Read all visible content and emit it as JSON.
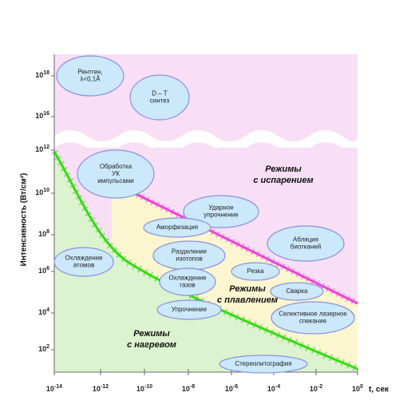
{
  "y_axis": {
    "label": "Интенсивность (Вт/см²)",
    "ticks": [
      {
        "base": "10",
        "exponent": "18"
      },
      {
        "base": "10",
        "exponent": "16"
      },
      {
        "base": "10",
        "exponent": "12"
      },
      {
        "base": "10",
        "exponent": "10"
      },
      {
        "base": "10",
        "exponent": "8"
      },
      {
        "base": "10",
        "exponent": "6"
      },
      {
        "base": "10",
        "exponent": "4"
      },
      {
        "base": "10",
        "exponent": "2"
      }
    ]
  },
  "x_axis": {
    "label": "t, сек",
    "ticks": [
      {
        "base": "10",
        "exponent": "-14"
      },
      {
        "base": "10",
        "exponent": "-12"
      },
      {
        "base": "10",
        "exponent": "-10"
      },
      {
        "base": "10",
        "exponent": "-8"
      },
      {
        "base": "10",
        "exponent": "-6"
      },
      {
        "base": "10",
        "exponent": "-4"
      },
      {
        "base": "10",
        "exponent": "-2"
      },
      {
        "base": "10",
        "exponent": "0"
      }
    ]
  },
  "regions": [
    {
      "lines": [
        "Режимы",
        "с испарением"
      ]
    },
    {
      "lines": [
        "Режимы",
        "с плавлением"
      ]
    },
    {
      "lines": [
        "Режимы",
        "с нагревом"
      ]
    }
  ],
  "processes": [
    {
      "lines": [
        "Рентген,",
        "λ<0,1Å"
      ]
    },
    {
      "lines": [
        "D – T",
        "синтез"
      ]
    },
    {
      "lines": [
        "Обработка",
        "УК",
        "импульсами"
      ]
    },
    {
      "lines": [
        "Ударное",
        "упрочнение"
      ]
    },
    {
      "lines": [
        "Аморфизация"
      ]
    },
    {
      "lines": [
        "Разделение",
        "изотопов"
      ]
    },
    {
      "lines": [
        "Охлаждение",
        "атомов"
      ]
    },
    {
      "lines": [
        "Охлаждение",
        "газов"
      ]
    },
    {
      "lines": [
        "Упрочнение"
      ]
    },
    {
      "lines": [
        "Абляция",
        "биотканей"
      ]
    },
    {
      "lines": [
        "Резка"
      ]
    },
    {
      "lines": [
        "Сварка"
      ]
    },
    {
      "lines": [
        "Селективное лазерное",
        "спекание"
      ]
    },
    {
      "lines": [
        "Стереолитография"
      ]
    }
  ]
}
